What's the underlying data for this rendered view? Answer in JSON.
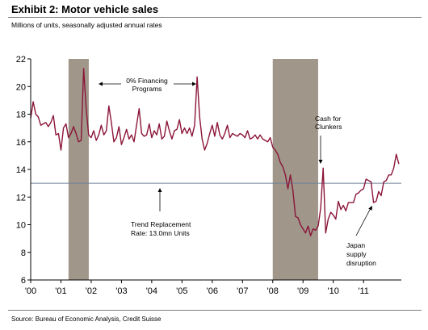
{
  "header": {
    "title": "Exhibit 2: Motor vehicle sales",
    "subtitle": "Millions of units, seasonally adjusted annual rates"
  },
  "footer": {
    "source": "Source: Bureau of Economic Analysis, Credit Suisse"
  },
  "colors": {
    "series": "#8b1538",
    "recession": "#a0968a",
    "trend": "#6e8298",
    "axis": "#000000"
  },
  "chart_data": {
    "type": "line",
    "title": "Exhibit 2: Motor vehicle sales",
    "subtitle": "Millions of units, seasonally adjusted annual rates",
    "xlabel": "",
    "ylabel": "",
    "xlim": [
      2000,
      2012.25
    ],
    "ylim": [
      6,
      22
    ],
    "yticks": [
      6,
      8,
      10,
      12,
      14,
      16,
      18,
      20,
      22
    ],
    "xticks": [
      {
        "x": 2000,
        "label": "'00"
      },
      {
        "x": 2001,
        "label": "'01"
      },
      {
        "x": 2002,
        "label": "'02"
      },
      {
        "x": 2003,
        "label": "'03"
      },
      {
        "x": 2004,
        "label": "'04"
      },
      {
        "x": 2005,
        "label": "'05"
      },
      {
        "x": 2006,
        "label": "'06"
      },
      {
        "x": 2007,
        "label": "'07"
      },
      {
        "x": 2008,
        "label": "'08"
      },
      {
        "x": 2009,
        "label": "'09"
      },
      {
        "x": 2010,
        "label": "'10"
      },
      {
        "x": 2011,
        "label": "'11"
      }
    ],
    "grid": false,
    "recessions": [
      [
        2001.25,
        2001.92
      ],
      [
        2008.0,
        2009.5
      ]
    ],
    "trend_line": {
      "y": 13.0,
      "label": "Trend Replacement Rate: 13.0mn Units"
    },
    "annotations": [
      {
        "text": "0% Financing Programs"
      },
      {
        "text": "Cash for Clunkers"
      },
      {
        "text": "Trend Replacement Rate: 13.0mn Units"
      },
      {
        "text": "Japan supply disruption"
      }
    ],
    "series": [
      {
        "x": [
          2000.0,
          2000.083,
          2000.167,
          2000.25,
          2000.333,
          2000.417,
          2000.5,
          2000.583,
          2000.667,
          2000.75,
          2000.833,
          2000.917,
          2001.0,
          2001.083,
          2001.167,
          2001.25,
          2001.333,
          2001.417,
          2001.5,
          2001.583,
          2001.667,
          2001.75,
          2001.833,
          2001.917,
          2002.0,
          2002.083,
          2002.167,
          2002.25,
          2002.333,
          2002.417,
          2002.5,
          2002.583,
          2002.667,
          2002.75,
          2002.833,
          2002.917,
          2003.0,
          2003.083,
          2003.167,
          2003.25,
          2003.333,
          2003.417,
          2003.5,
          2003.583,
          2003.667,
          2003.75,
          2003.833,
          2003.917,
          2004.0,
          2004.083,
          2004.167,
          2004.25,
          2004.333,
          2004.417,
          2004.5,
          2004.583,
          2004.667,
          2004.75,
          2004.833,
          2004.917,
          2005.0,
          2005.083,
          2005.167,
          2005.25,
          2005.333,
          2005.417,
          2005.5,
          2005.583,
          2005.667,
          2005.75,
          2005.833,
          2005.917,
          2006.0,
          2006.083,
          2006.167,
          2006.25,
          2006.333,
          2006.417,
          2006.5,
          2006.583,
          2006.667,
          2006.75,
          2006.833,
          2006.917,
          2007.0,
          2007.083,
          2007.167,
          2007.25,
          2007.333,
          2007.417,
          2007.5,
          2007.583,
          2007.667,
          2007.75,
          2007.833,
          2007.917,
          2008.0,
          2008.083,
          2008.167,
          2008.25,
          2008.333,
          2008.417,
          2008.5,
          2008.583,
          2008.667,
          2008.75,
          2008.833,
          2008.917,
          2009.0,
          2009.083,
          2009.167,
          2009.25,
          2009.333,
          2009.417,
          2009.5,
          2009.583,
          2009.667,
          2009.75,
          2009.833,
          2009.917,
          2010.0,
          2010.083,
          2010.167,
          2010.25,
          2010.333,
          2010.417,
          2010.5,
          2010.583,
          2010.667,
          2010.75,
          2010.833,
          2010.917,
          2011.0,
          2011.083,
          2011.167,
          2011.25,
          2011.333,
          2011.417,
          2011.5,
          2011.583,
          2011.667,
          2011.75,
          2011.833,
          2011.917,
          2012.0,
          2012.083,
          2012.167
        ],
        "values": [
          17.7,
          18.9,
          18.0,
          17.8,
          17.2,
          17.3,
          17.4,
          17.1,
          17.4,
          17.9,
          16.5,
          16.6,
          15.4,
          17.0,
          17.3,
          16.3,
          16.6,
          17.1,
          16.6,
          16.0,
          16.1,
          21.3,
          18.4,
          16.5,
          16.3,
          16.8,
          16.1,
          16.5,
          17.2,
          16.5,
          16.8,
          18.6,
          17.4,
          16.0,
          16.3,
          17.1,
          15.8,
          16.3,
          16.9,
          16.2,
          16.5,
          16.0,
          17.2,
          18.4,
          16.6,
          16.4,
          16.5,
          17.3,
          16.3,
          16.8,
          16.5,
          17.3,
          16.2,
          16.4,
          17.5,
          16.8,
          16.2,
          16.8,
          16.9,
          17.6,
          16.6,
          17.0,
          16.6,
          17.0,
          16.4,
          17.2,
          20.7,
          17.8,
          16.2,
          15.4,
          15.9,
          16.6,
          17.2,
          16.4,
          17.4,
          16.5,
          16.2,
          16.6,
          17.2,
          16.3,
          16.6,
          16.5,
          16.4,
          16.6,
          16.5,
          16.3,
          16.8,
          16.2,
          16.3,
          16.5,
          16.2,
          16.5,
          16.2,
          16.1,
          16.0,
          16.3,
          15.6,
          15.4,
          15.1,
          14.5,
          14.2,
          13.6,
          12.6,
          13.6,
          12.5,
          10.6,
          10.5,
          10.0,
          9.7,
          9.4,
          9.9,
          9.2,
          9.7,
          9.6,
          9.9,
          11.2,
          14.1,
          9.4,
          10.4,
          10.9,
          10.7,
          10.4,
          11.7,
          11.1,
          11.4,
          11.0,
          11.6,
          11.6,
          11.6,
          12.2,
          12.3,
          12.5,
          12.6,
          13.3,
          13.2,
          13.1,
          11.6,
          11.7,
          12.4,
          12.1,
          13.1,
          13.2,
          13.6,
          13.6,
          14.1,
          15.1,
          14.4
        ]
      }
    ]
  }
}
